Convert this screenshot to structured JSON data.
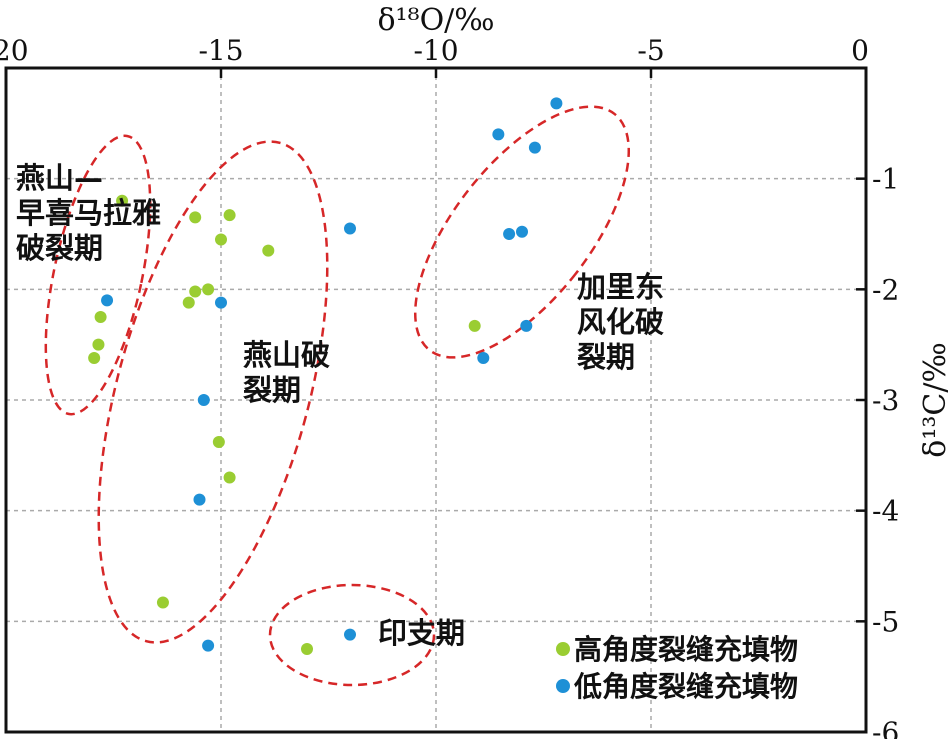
{
  "chart_data": {
    "type": "scatter",
    "title": "",
    "xlabel": "δ¹⁸O/‰",
    "ylabel": "δ¹³C/‰",
    "xlim": [
      -20,
      0
    ],
    "ylim": [
      -6,
      0
    ],
    "x_axis_position": "top",
    "y_axis_position": "right",
    "x_ticks": [
      "-20",
      "-15",
      "-10",
      "-5",
      "0"
    ],
    "y_ticks": [
      "-1",
      "-2",
      "-3",
      "-4",
      "-5",
      "-6"
    ],
    "grid": true,
    "legend_position": "bottom-right",
    "series": [
      {
        "name": "高角度裂缝充填物",
        "color": "#9acd32",
        "points": [
          [
            -17.3,
            -1.2
          ],
          [
            -15.6,
            -1.35
          ],
          [
            -14.8,
            -1.33
          ],
          [
            -15.0,
            -1.55
          ],
          [
            -13.9,
            -1.65
          ],
          [
            -15.6,
            -2.02
          ],
          [
            -15.3,
            -2.0
          ],
          [
            -15.75,
            -2.12
          ],
          [
            -17.8,
            -2.25
          ],
          [
            -17.85,
            -2.5
          ],
          [
            -17.95,
            -2.62
          ],
          [
            -15.05,
            -3.38
          ],
          [
            -14.8,
            -3.7
          ],
          [
            -16.35,
            -4.83
          ],
          [
            -13.0,
            -5.25
          ],
          [
            -9.1,
            -2.33
          ]
        ]
      },
      {
        "name": "低角度裂缝充填物",
        "color": "#1e90d6",
        "points": [
          [
            -17.65,
            -2.1
          ],
          [
            -15.0,
            -2.12
          ],
          [
            -12.0,
            -1.45
          ],
          [
            -15.4,
            -3.0
          ],
          [
            -15.5,
            -3.9
          ],
          [
            -15.3,
            -5.22
          ],
          [
            -12.0,
            -5.12
          ],
          [
            -8.55,
            -0.6
          ],
          [
            -7.7,
            -0.72
          ],
          [
            -7.2,
            -0.32
          ],
          [
            -8.3,
            -1.5
          ],
          [
            -8.0,
            -1.48
          ],
          [
            -7.9,
            -2.33
          ],
          [
            -8.9,
            -2.62
          ]
        ]
      }
    ],
    "regions": [
      {
        "label": "燕山—\n早喜马拉雅\n破裂期",
        "color": "#d62728"
      },
      {
        "label": "燕山破\n裂期",
        "color": "#d62728"
      },
      {
        "label": "加里东\n风化破\n裂期",
        "color": "#d62728"
      },
      {
        "label": "印支期",
        "color": "#d62728"
      }
    ]
  }
}
